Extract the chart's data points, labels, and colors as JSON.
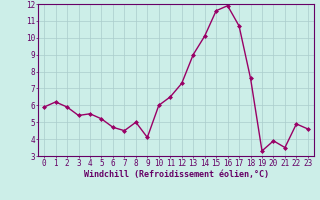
{
  "x": [
    0,
    1,
    2,
    3,
    4,
    5,
    6,
    7,
    8,
    9,
    10,
    11,
    12,
    13,
    14,
    15,
    16,
    17,
    18,
    19,
    20,
    21,
    22,
    23
  ],
  "y": [
    5.9,
    6.2,
    5.9,
    5.4,
    5.5,
    5.2,
    4.7,
    4.5,
    5.0,
    4.1,
    6.0,
    6.5,
    7.3,
    9.0,
    10.1,
    11.6,
    11.9,
    10.7,
    7.6,
    3.3,
    3.9,
    3.5,
    4.9,
    4.6
  ],
  "line_color": "#990066",
  "marker": "D",
  "marker_size": 2,
  "bg_color": "#cceee8",
  "grid_color": "#aacccc",
  "xlabel": "Windchill (Refroidissement éolien,°C)",
  "ylim": [
    3,
    12
  ],
  "xlim_min": -0.5,
  "xlim_max": 23.5,
  "yticks": [
    3,
    4,
    5,
    6,
    7,
    8,
    9,
    10,
    11,
    12
  ],
  "xticks": [
    0,
    1,
    2,
    3,
    4,
    5,
    6,
    7,
    8,
    9,
    10,
    11,
    12,
    13,
    14,
    15,
    16,
    17,
    18,
    19,
    20,
    21,
    22,
    23
  ],
  "axis_color": "#660066",
  "tick_color": "#660066",
  "label_fontsize": 6,
  "tick_fontsize": 5.5,
  "linewidth": 1.0
}
